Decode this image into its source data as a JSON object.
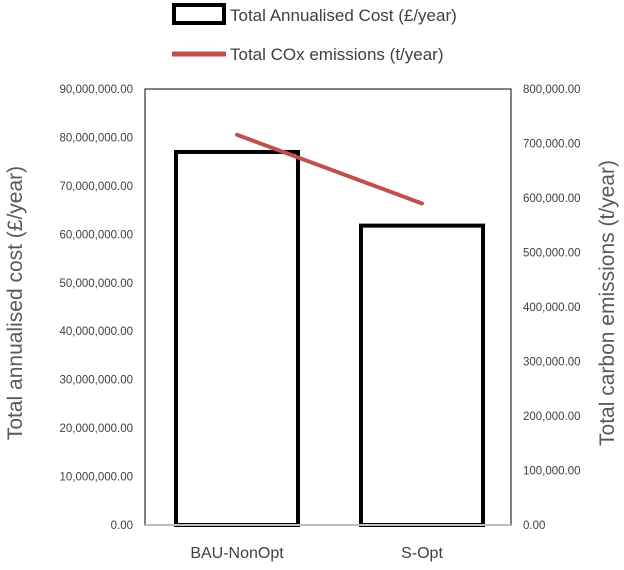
{
  "chart_data": {
    "type": "bar",
    "categories": [
      "BAU-NonOpt",
      "S-Opt"
    ],
    "series": [
      {
        "name": "Total Annualised Cost (£/year)",
        "kind": "bar",
        "axis": "left",
        "values": [
          77000000,
          61800000
        ],
        "fill": "#ffffff",
        "stroke": "#000000"
      },
      {
        "name": "Total COx emissions (t/year)",
        "kind": "line",
        "axis": "right",
        "values": [
          716000,
          590000
        ],
        "color": "#c0504d"
      }
    ],
    "left_axis": {
      "title": "Total annualised cost (£/year)",
      "ylim": [
        0,
        90000000
      ],
      "ticks": [
        "0.00",
        "10,000,000.00",
        "20,000,000.00",
        "30,000,000.00",
        "40,000,000.00",
        "50,000,000.00",
        "60,000,000.00",
        "70,000,000.00",
        "80,000,000.00",
        "90,000,000.00"
      ]
    },
    "right_axis": {
      "title": "Total carbon emissions (t/year)",
      "ylim": [
        0,
        800000
      ],
      "ticks": [
        "0.00",
        "100,000.00",
        "200,000.00",
        "300,000.00",
        "400,000.00",
        "500,000.00",
        "600,000.00",
        "700,000.00",
        "800,000.00"
      ]
    },
    "legend_placement": "top",
    "grid": false
  }
}
